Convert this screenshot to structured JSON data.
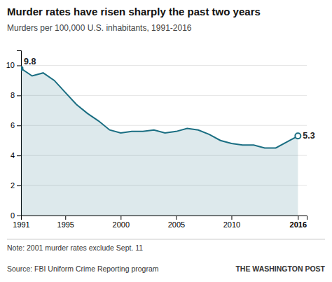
{
  "chart_data": {
    "type": "area",
    "title": "Murder rates have risen sharply the past two years",
    "subtitle": "Murders per 100,000 U.S. inhabitants, 1991-2016",
    "note": "Note: 2001 murder rates exclude Sept. 11",
    "source": "Source: FBI Uniform Crime Reporting program",
    "source_right": "THE WASHINGTON POST",
    "x": [
      1991,
      1992,
      1993,
      1994,
      1995,
      1996,
      1997,
      1998,
      1999,
      2000,
      2001,
      2002,
      2003,
      2004,
      2005,
      2006,
      2007,
      2008,
      2009,
      2010,
      2011,
      2012,
      2013,
      2014,
      2015,
      2016
    ],
    "values": [
      9.8,
      9.3,
      9.5,
      9.0,
      8.2,
      7.4,
      6.8,
      6.3,
      5.7,
      5.5,
      5.6,
      5.6,
      5.7,
      5.5,
      5.6,
      5.8,
      5.7,
      5.4,
      5.0,
      4.8,
      4.7,
      4.7,
      4.5,
      4.5,
      4.9,
      5.3
    ],
    "color": "#1a6e82",
    "xlim": [
      1991,
      2016.8
    ],
    "xticks": [
      1991,
      1995,
      2000,
      2005,
      2010,
      2016
    ],
    "ylim": [
      0,
      11
    ],
    "yticks": [
      0,
      2,
      4,
      6,
      8,
      10
    ],
    "grid": true,
    "annotations": [
      {
        "x": 1991,
        "y": 9.8,
        "text": "9.8"
      },
      {
        "x": 2016,
        "y": 5.3,
        "text": "5.3"
      }
    ]
  }
}
